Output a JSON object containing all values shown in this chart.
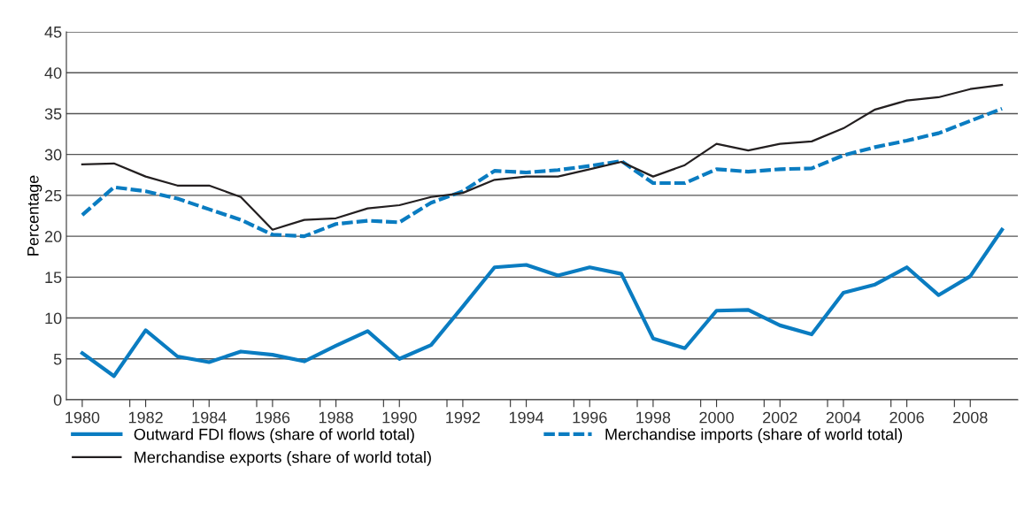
{
  "chart_data": {
    "type": "line",
    "ylabel": "Percentage",
    "x": [
      1980,
      1981,
      1982,
      1983,
      1984,
      1985,
      1986,
      1987,
      1988,
      1989,
      1990,
      1991,
      1992,
      1993,
      1994,
      1995,
      1996,
      1997,
      1998,
      1999,
      2000,
      2001,
      2002,
      2003,
      2004,
      2005,
      2006,
      2007,
      2008,
      2009
    ],
    "series": [
      {
        "name": "Outward FDI flows (share of world total)",
        "color": "#0a7cc1",
        "line_style": "solid",
        "values": [
          5.7,
          2.9,
          8.5,
          5.3,
          4.6,
          5.9,
          5.5,
          4.7,
          6.6,
          8.4,
          5.0,
          6.7,
          11.4,
          16.2,
          16.5,
          15.2,
          16.2,
          15.4,
          7.5,
          6.3,
          10.9,
          11.0,
          9.1,
          8.0,
          13.1,
          14.1,
          16.2,
          12.8,
          15.1,
          20.8
        ]
      },
      {
        "name": "Merchandise imports (share of world total)",
        "color": "#0a7cc1",
        "line_style": "dashed",
        "values": [
          22.6,
          26.0,
          25.5,
          24.6,
          23.3,
          22.0,
          20.2,
          20.0,
          21.5,
          21.9,
          21.7,
          24.1,
          25.5,
          28.0,
          27.8,
          28.1,
          28.6,
          29.2,
          26.5,
          26.5,
          28.2,
          27.9,
          28.2,
          28.3,
          29.9,
          30.9,
          31.7,
          32.6,
          34.1,
          35.6
        ]
      },
      {
        "name": "Merchandise exports (share of world total)",
        "color": "#231f20",
        "line_style": "solid",
        "values": [
          28.8,
          28.9,
          27.3,
          26.2,
          26.2,
          24.8,
          20.8,
          22.0,
          22.2,
          23.4,
          23.8,
          24.8,
          25.3,
          26.9,
          27.3,
          27.3,
          28.2,
          29.1,
          27.3,
          28.7,
          31.3,
          30.5,
          31.3,
          31.6,
          33.2,
          35.5,
          36.6,
          37.0,
          38.0,
          38.5
        ]
      }
    ],
    "xlim": [
      1979.5,
      2009.5
    ],
    "xticks": [
      {
        "value": 1980,
        "label": "1980"
      },
      {
        "value": 1981.5,
        "label": null
      },
      {
        "value": 1982,
        "label": "1982"
      },
      {
        "value": 1983.5,
        "label": null
      },
      {
        "value": 1984,
        "label": "1984"
      },
      {
        "value": 1985.5,
        "label": null
      },
      {
        "value": 1986,
        "label": "1986"
      },
      {
        "value": 1987.5,
        "label": null
      },
      {
        "value": 1988,
        "label": "1988"
      },
      {
        "value": 1989.5,
        "label": null
      },
      {
        "value": 1990,
        "label": "1990"
      },
      {
        "value": 1991.5,
        "label": null
      },
      {
        "value": 1992,
        "label": "1992"
      },
      {
        "value": 1993.5,
        "label": null
      },
      {
        "value": 1994,
        "label": "1994"
      },
      {
        "value": 1995.5,
        "label": null
      },
      {
        "value": 1996,
        "label": "1996"
      },
      {
        "value": 1997.5,
        "label": null
      },
      {
        "value": 1998,
        "label": "1998"
      },
      {
        "value": 1999.5,
        "label": null
      },
      {
        "value": 2000,
        "label": "2000"
      },
      {
        "value": 2001.5,
        "label": null
      },
      {
        "value": 2002,
        "label": "2002"
      },
      {
        "value": 2003.5,
        "label": null
      },
      {
        "value": 2004,
        "label": "2004"
      },
      {
        "value": 2005.5,
        "label": null
      },
      {
        "value": 2006,
        "label": "2006"
      },
      {
        "value": 2007.5,
        "label": null
      },
      {
        "value": 2008,
        "label": "2008"
      }
    ],
    "ylim": [
      0,
      45
    ],
    "yticks": [
      0,
      5,
      10,
      15,
      20,
      25,
      30,
      35,
      40,
      45
    ],
    "grid": "y",
    "legend": "bottom",
    "marker": "none"
  }
}
